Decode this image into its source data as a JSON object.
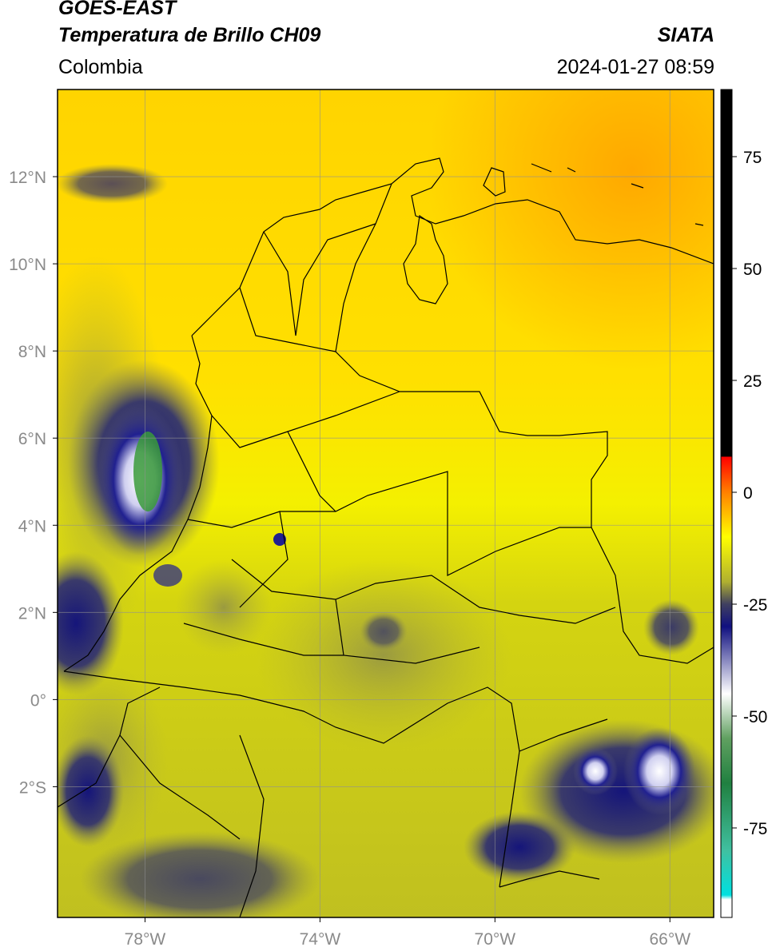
{
  "header": {
    "satellite": "GOES-EAST",
    "product": "Temperatura de Brillo CH09",
    "region": "Colombia",
    "source": "SIATA",
    "datetime": "2024-01-27 08:59"
  },
  "map": {
    "lon_range": [
      -80,
      -65
    ],
    "lat_range": [
      -5,
      14
    ],
    "lat_ticks": [
      {
        "value": 12,
        "label": "12°N"
      },
      {
        "value": 10,
        "label": "10°N"
      },
      {
        "value": 8,
        "label": "8°N"
      },
      {
        "value": 6,
        "label": "6°N"
      },
      {
        "value": 4,
        "label": "4°N"
      },
      {
        "value": 2,
        "label": "2°N"
      },
      {
        "value": 0,
        "label": "0°"
      },
      {
        "value": -2,
        "label": "2°S"
      }
    ],
    "lon_ticks": [
      {
        "value": -78,
        "label": "78°W"
      },
      {
        "value": -74,
        "label": "74°W"
      },
      {
        "value": -70,
        "label": "70°W"
      },
      {
        "value": -66,
        "label": "66°W"
      }
    ],
    "gridlines": true
  },
  "colorbar": {
    "range": [
      -95,
      90
    ],
    "ticks": [
      {
        "value": 75,
        "label": "75"
      },
      {
        "value": 50,
        "label": "50"
      },
      {
        "value": 25,
        "label": "25"
      },
      {
        "value": 0,
        "label": "0"
      },
      {
        "value": -25,
        "label": "-25"
      },
      {
        "value": -50,
        "label": "-50"
      },
      {
        "value": -75,
        "label": "-75"
      }
    ],
    "stops": [
      {
        "value": 90,
        "color": "#000000"
      },
      {
        "value": 8,
        "color": "#000000"
      },
      {
        "value": 7.9,
        "color": "#ff0000"
      },
      {
        "value": 0,
        "color": "#ff8000"
      },
      {
        "value": -10,
        "color": "#ffff00"
      },
      {
        "value": -20,
        "color": "#b0b030"
      },
      {
        "value": -25,
        "color": "#404060"
      },
      {
        "value": -30,
        "color": "#101080"
      },
      {
        "value": -45,
        "color": "#ffffff"
      },
      {
        "value": -55,
        "color": "#60a060"
      },
      {
        "value": -65,
        "color": "#208040"
      },
      {
        "value": -80,
        "color": "#40c0a0"
      },
      {
        "value": -90,
        "color": "#00e0e0"
      },
      {
        "value": -91,
        "color": "#ffffff"
      },
      {
        "value": -95,
        "color": "#ffffff"
      }
    ]
  },
  "colors": {
    "yellow": "#ffff00",
    "orange": "#ffa500",
    "olive": "#b8b820",
    "navy": "#151580",
    "green": "#3a9a3a"
  }
}
